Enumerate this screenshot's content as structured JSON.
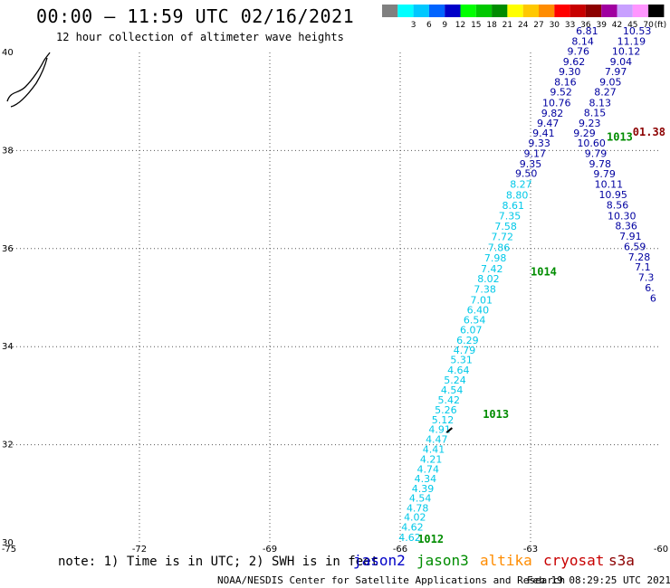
{
  "header": {
    "title": "00:00 – 11:59 UTC 02/16/2021",
    "subtitle": "12 hour collection of altimeter wave heights"
  },
  "legend": {
    "unit": "(ft)",
    "bins": [
      {
        "label": "",
        "color": "#808080"
      },
      {
        "label": "3",
        "color": "#00ffff"
      },
      {
        "label": "6",
        "color": "#00c8ff"
      },
      {
        "label": "9",
        "color": "#0064ff"
      },
      {
        "label": "12",
        "color": "#0000c8"
      },
      {
        "label": "15",
        "color": "#00ff00"
      },
      {
        "label": "18",
        "color": "#00c800"
      },
      {
        "label": "21",
        "color": "#008c00"
      },
      {
        "label": "24",
        "color": "#ffff00"
      },
      {
        "label": "27",
        "color": "#ffc800"
      },
      {
        "label": "30",
        "color": "#ff8c00"
      },
      {
        "label": "33",
        "color": "#ff0000"
      },
      {
        "label": "36",
        "color": "#c80000"
      },
      {
        "label": "39",
        "color": "#8c0000"
      },
      {
        "label": "42",
        "color": "#a000a0"
      },
      {
        "label": "45",
        "color": "#c8a0ff"
      },
      {
        "label": "70",
        "color": "#ff96ff"
      },
      {
        "label": "",
        "color": "#000000"
      }
    ]
  },
  "map": {
    "lon_range": [
      -75,
      -60
    ],
    "lat_range": [
      30,
      40
    ],
    "lon_ticks": [
      "-75",
      "-72",
      "-69",
      "-66",
      "-63",
      "-60"
    ],
    "lat_ticks": [
      "30",
      "32",
      "34",
      "36",
      "38",
      "40"
    ],
    "gridlines": "dotted"
  },
  "tracks": {
    "cyan_track": {
      "color": "#00c8e8",
      "points": [
        {
          "lon": -65.78,
          "lat": 30.04,
          "v": "4.62"
        },
        {
          "lon": -65.72,
          "lat": 30.25,
          "v": "4.62"
        },
        {
          "lon": -65.66,
          "lat": 30.45,
          "v": "4.02"
        },
        {
          "lon": -65.6,
          "lat": 30.64,
          "v": "4.78"
        },
        {
          "lon": -65.54,
          "lat": 30.84,
          "v": "4.54"
        },
        {
          "lon": -65.48,
          "lat": 31.03,
          "v": "4.39"
        },
        {
          "lon": -65.42,
          "lat": 31.24,
          "v": "4.34"
        },
        {
          "lon": -65.36,
          "lat": 31.43,
          "v": "4.74"
        },
        {
          "lon": -65.29,
          "lat": 31.63,
          "v": "4.21"
        },
        {
          "lon": -65.23,
          "lat": 31.84,
          "v": "4.41"
        },
        {
          "lon": -65.16,
          "lat": 32.04,
          "v": "4.47"
        },
        {
          "lon": -65.09,
          "lat": 32.24,
          "v": "4.91"
        },
        {
          "lon": -65.02,
          "lat": 32.44,
          "v": "5.12"
        },
        {
          "lon": -64.95,
          "lat": 32.64,
          "v": "5.26"
        },
        {
          "lon": -64.88,
          "lat": 32.84,
          "v": "5.42"
        },
        {
          "lon": -64.81,
          "lat": 33.04,
          "v": "4.54"
        },
        {
          "lon": -64.74,
          "lat": 33.25,
          "v": "5.24"
        },
        {
          "lon": -64.66,
          "lat": 33.45,
          "v": "4.64"
        },
        {
          "lon": -64.59,
          "lat": 33.66,
          "v": "5.31"
        },
        {
          "lon": -64.52,
          "lat": 33.86,
          "v": "4.79"
        },
        {
          "lon": -64.45,
          "lat": 34.06,
          "v": "6.29"
        },
        {
          "lon": -64.37,
          "lat": 34.27,
          "v": "6.07"
        },
        {
          "lon": -64.29,
          "lat": 34.47,
          "v": "6.54"
        },
        {
          "lon": -64.21,
          "lat": 34.68,
          "v": "6.40"
        },
        {
          "lon": -64.13,
          "lat": 34.88,
          "v": "7.01"
        },
        {
          "lon": -64.05,
          "lat": 35.1,
          "v": "7.38"
        },
        {
          "lon": -63.97,
          "lat": 35.31,
          "v": "8.02"
        },
        {
          "lon": -63.89,
          "lat": 35.52,
          "v": "7.42"
        },
        {
          "lon": -63.81,
          "lat": 35.74,
          "v": "7.98"
        },
        {
          "lon": -63.73,
          "lat": 35.95,
          "v": "7.86"
        },
        {
          "lon": -63.65,
          "lat": 36.17,
          "v": "7.72"
        },
        {
          "lon": -63.57,
          "lat": 36.38,
          "v": "7.58"
        },
        {
          "lon": -63.48,
          "lat": 36.6,
          "v": "7.35"
        },
        {
          "lon": -63.4,
          "lat": 36.81,
          "v": "8.61"
        },
        {
          "lon": -63.31,
          "lat": 37.02,
          "v": "8.80"
        },
        {
          "lon": -63.22,
          "lat": 37.24,
          "v": "8.27"
        }
      ]
    },
    "navy_track": {
      "color": "#0000a0",
      "points": [
        {
          "lon": -63.1,
          "lat": 37.46,
          "v": "9.50"
        },
        {
          "lon": -63.0,
          "lat": 37.66,
          "v": "9.35"
        },
        {
          "lon": -62.9,
          "lat": 37.87,
          "v": "9.17"
        },
        {
          "lon": -62.8,
          "lat": 38.08,
          "v": "9.33"
        },
        {
          "lon": -62.7,
          "lat": 38.28,
          "v": "9.41"
        },
        {
          "lon": -62.6,
          "lat": 38.49,
          "v": "9.47"
        },
        {
          "lon": -62.5,
          "lat": 38.69,
          "v": "9.82"
        },
        {
          "lon": -62.4,
          "lat": 38.9,
          "v": "10.76"
        },
        {
          "lon": -62.3,
          "lat": 39.12,
          "v": "9.52"
        },
        {
          "lon": -62.2,
          "lat": 39.33,
          "v": "8.16"
        },
        {
          "lon": -62.1,
          "lat": 39.54,
          "v": "9.30"
        },
        {
          "lon": -62.0,
          "lat": 39.74,
          "v": "9.62"
        },
        {
          "lon": -61.9,
          "lat": 39.95,
          "v": "9.76"
        },
        {
          "lon": -61.8,
          "lat": 40.16,
          "v": "8.14"
        },
        {
          "lon": -61.7,
          "lat": 40.37,
          "v": "6.81"
        }
      ]
    },
    "right_track": {
      "color": "#0000a0",
      "points": [
        {
          "lon": -60.55,
          "lat": 40.37,
          "v": "10.53"
        },
        {
          "lon": -60.68,
          "lat": 40.16,
          "v": "11.19"
        },
        {
          "lon": -60.8,
          "lat": 39.95,
          "v": "10.12"
        },
        {
          "lon": -60.92,
          "lat": 39.74,
          "v": "9.04"
        },
        {
          "lon": -61.04,
          "lat": 39.54,
          "v": "7.97"
        },
        {
          "lon": -61.16,
          "lat": 39.33,
          "v": "9.05"
        },
        {
          "lon": -61.28,
          "lat": 39.12,
          "v": "8.27"
        },
        {
          "lon": -61.4,
          "lat": 38.9,
          "v": "8.13"
        },
        {
          "lon": -61.52,
          "lat": 38.7,
          "v": "8.15"
        },
        {
          "lon": -61.64,
          "lat": 38.49,
          "v": "9.23"
        },
        {
          "lon": -61.76,
          "lat": 38.28,
          "v": "9.29"
        },
        {
          "lon": -61.6,
          "lat": 38.08,
          "v": "10.60"
        },
        {
          "lon": -61.5,
          "lat": 37.87,
          "v": "9.79"
        },
        {
          "lon": -61.4,
          "lat": 37.66,
          "v": "9.78"
        },
        {
          "lon": -61.3,
          "lat": 37.45,
          "v": "9.79"
        },
        {
          "lon": -61.2,
          "lat": 37.24,
          "v": "10.11"
        },
        {
          "lon": -61.1,
          "lat": 37.03,
          "v": "10.95"
        },
        {
          "lon": -61.0,
          "lat": 36.82,
          "v": "8.56"
        },
        {
          "lon": -60.9,
          "lat": 36.6,
          "v": "10.30"
        },
        {
          "lon": -60.8,
          "lat": 36.39,
          "v": "8.36"
        },
        {
          "lon": -60.7,
          "lat": 36.18,
          "v": "7.91"
        },
        {
          "lon": -60.6,
          "lat": 35.97,
          "v": "6.59"
        },
        {
          "lon": -60.5,
          "lat": 35.76,
          "v": "7.28"
        },
        {
          "lon": -60.42,
          "lat": 35.55,
          "v": "7.1"
        },
        {
          "lon": -60.34,
          "lat": 35.34,
          "v": "7.3"
        },
        {
          "lon": -60.26,
          "lat": 35.13,
          "v": "6."
        },
        {
          "lon": -60.18,
          "lat": 34.92,
          "v": "6"
        }
      ]
    }
  },
  "extra_labels": [
    {
      "text": "1013",
      "lon": -61.25,
      "lat": 38.2,
      "color": "#008c00"
    },
    {
      "text": "01.38",
      "lon": -60.65,
      "lat": 38.3,
      "color": "#8c0000"
    }
  ],
  "pressure_labels": [
    {
      "text": "1014",
      "lon": -63.0,
      "lat": 35.45
    },
    {
      "text": "1013",
      "lon": -64.1,
      "lat": 32.55
    },
    {
      "text": "1012",
      "lon": -65.6,
      "lat": 30.0
    }
  ],
  "footer": {
    "note": "note: 1) Time is in UTC; 2) SWH is in feet",
    "satellites": [
      {
        "name": "jason2",
        "color": "#0000c8"
      },
      {
        "name": "jason3",
        "color": "#008c00"
      },
      {
        "name": "altika",
        "color": "#ff8c00"
      },
      {
        "name": "cryosat",
        "color": "#c80000"
      },
      {
        "name": "s3a",
        "color": "#8c0000"
      }
    ],
    "credit": "NOAA/NESDIS Center for Satellite Applications and Research",
    "timestamp": "Feb 19 08:29:25 UTC 2021"
  }
}
